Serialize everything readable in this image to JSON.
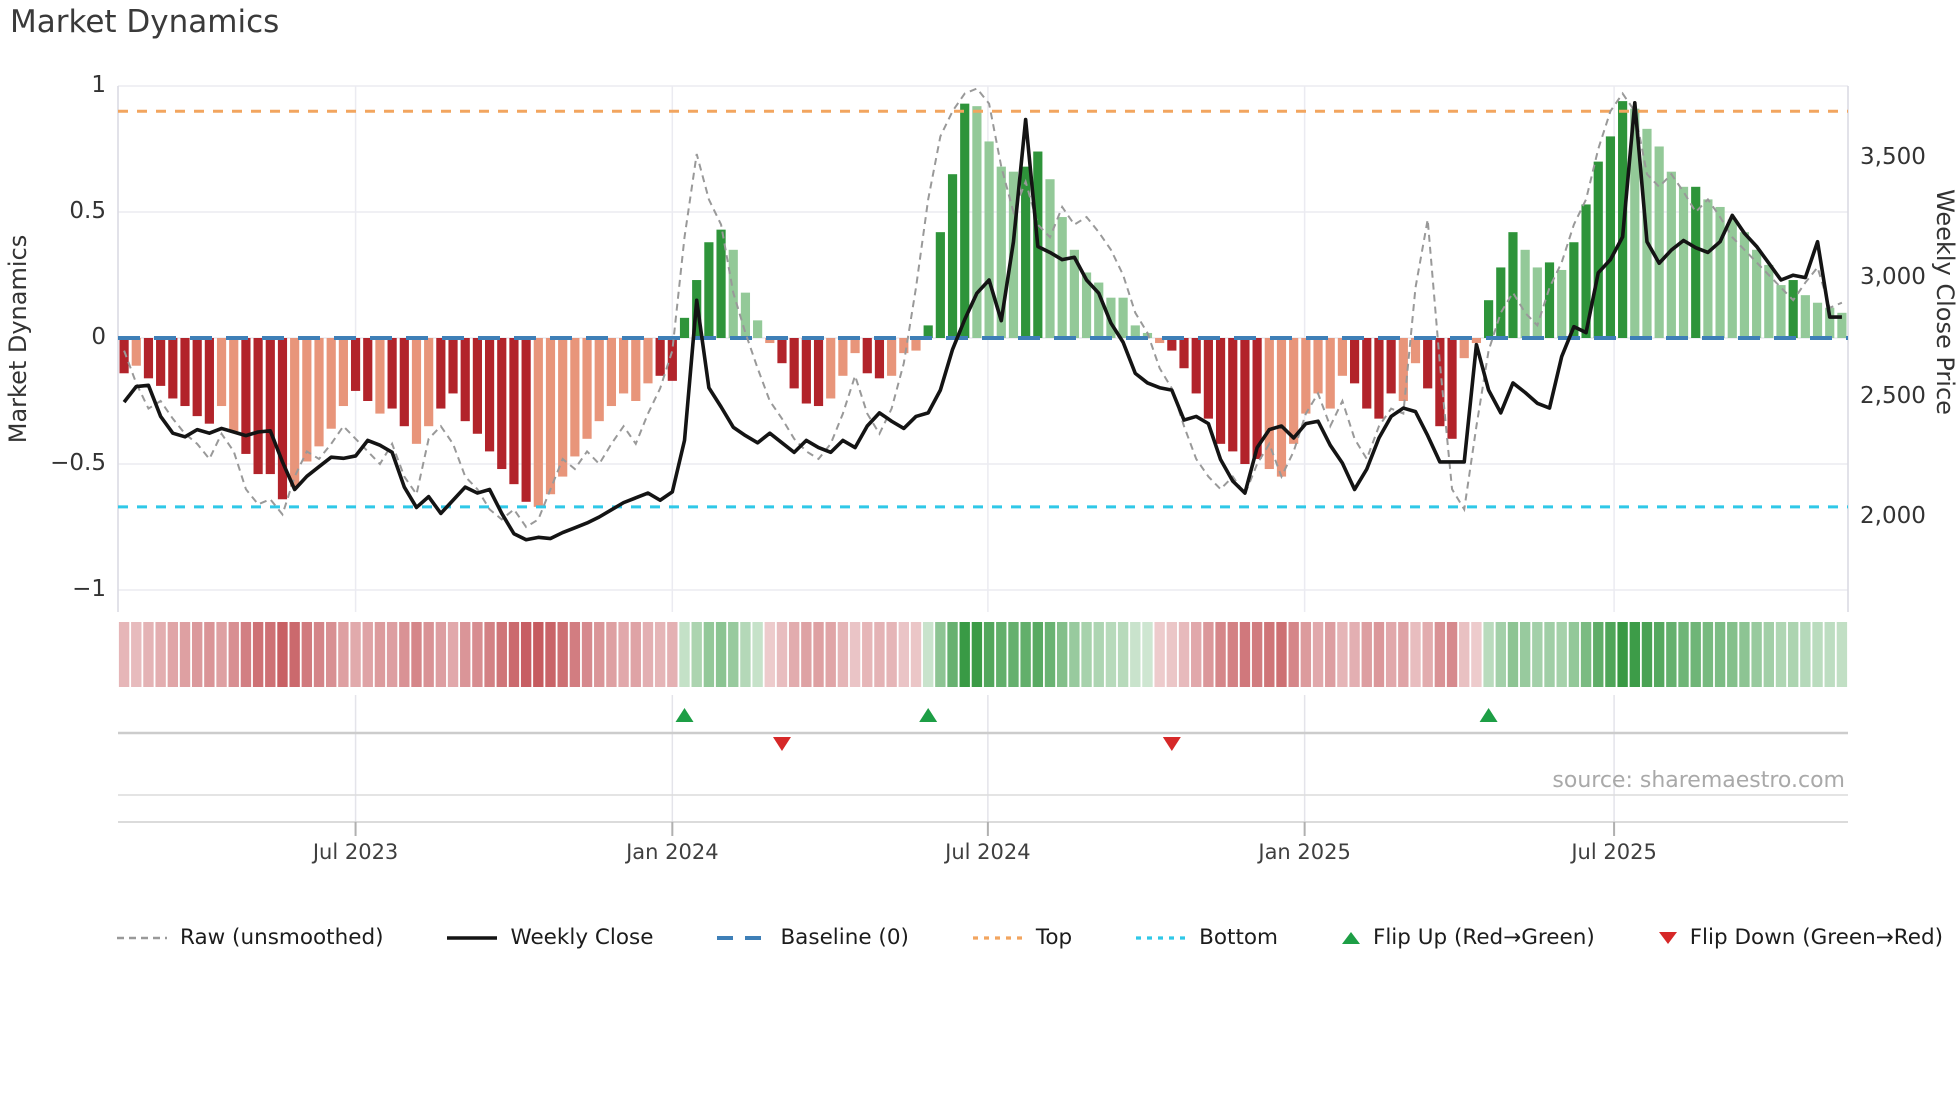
{
  "title": "Market Dynamics",
  "y_left": {
    "label": "Market Dynamics",
    "ticks": [
      {
        "label": "1",
        "value": 1
      },
      {
        "label": "0.5",
        "value": 0.5
      },
      {
        "label": "0",
        "value": 0
      },
      {
        "label": "−0.5",
        "value": -0.5
      },
      {
        "label": "−1",
        "value": -1
      }
    ]
  },
  "y_right": {
    "label": "Weekly Close Price",
    "ticks": [
      {
        "label": "3,500",
        "value": 3500
      },
      {
        "label": "3,000",
        "value": 3000
      },
      {
        "label": "2,500",
        "value": 2500
      },
      {
        "label": "2,000",
        "value": 2000
      }
    ]
  },
  "x_axis": {
    "ticks": [
      {
        "label": "Jul 2023",
        "week": 19.0
      },
      {
        "label": "Jan 2024",
        "week": 45.0
      },
      {
        "label": "Jul 2024",
        "week": 70.9
      },
      {
        "label": "Jan 2025",
        "week": 96.9
      },
      {
        "label": "Jul 2025",
        "week": 122.3
      }
    ]
  },
  "source": "source: sharemaestro.com",
  "colors": {
    "bar_dark_red": "#b2232a",
    "bar_salmon": "#e8957a",
    "bar_dark_green": "#2e943a",
    "bar_light_green": "#93c998",
    "baseline_blue": "#3e7fb7",
    "top_orange": "#f2a55f",
    "bottom_cyan": "#2fc8e8",
    "raw_gray": "#999999",
    "price_black": "#141414",
    "grid": "#ebebf1",
    "spine": "#d9d9e2",
    "flip_up_green": "#1d9e45",
    "flip_down_red": "#d62828",
    "panel_line": "#cccccc"
  },
  "legend": [
    {
      "label": "Raw (unsmoothed)",
      "swatch": "dash-gray"
    },
    {
      "label": "Weekly Close",
      "swatch": "solid-black"
    },
    {
      "label": "Baseline (0)",
      "swatch": "dash-blue"
    },
    {
      "label": "Top",
      "swatch": "dot-orange"
    },
    {
      "label": "Bottom",
      "swatch": "dot-cyan"
    },
    {
      "label": "Flip Up (Red→Green)",
      "swatch": "tri-up-green"
    },
    {
      "label": "Flip Down (Green→Red)",
      "swatch": "tri-down-red"
    }
  ],
  "chart_data": {
    "type": "bar",
    "subtype": "oscillator bars + two lines + heatmap strip + flip markers",
    "n_points": 142,
    "x_unit": "week",
    "ylim_left": [
      -1.05,
      1.05
    ],
    "reference_lines": {
      "baseline": 0,
      "top": 0.9,
      "bottom": -0.67
    },
    "flip_up_weeks": [
      46,
      66,
      112
    ],
    "flip_down_weeks": [
      54,
      86
    ],
    "series": [
      {
        "name": "Market Dynamics oscillator (bars, left axis)",
        "type": "bar",
        "shade_key": "d=dark red/green, l=light salmon/light green",
        "shade": "dlddddddllddddlllllIddlddllddddddddlllllllllldddddd llllddddlllddllldddd llllddlllllllllldddd ddddlllllllddddllddd lldddlldldddddllllldllllllldllll",
        "values": [
          -0.14,
          -0.11,
          -0.16,
          -0.19,
          -0.24,
          -0.27,
          -0.31,
          -0.34,
          -0.27,
          -0.37,
          -0.46,
          -0.54,
          -0.54,
          -0.64,
          -0.59,
          -0.49,
          -0.43,
          -0.36,
          -0.27,
          -0.21,
          -0.25,
          -0.3,
          -0.28,
          -0.35,
          -0.42,
          -0.35,
          -0.28,
          -0.22,
          -0.33,
          -0.38,
          -0.45,
          -0.52,
          -0.58,
          -0.65,
          -0.67,
          -0.62,
          -0.55,
          -0.47,
          -0.4,
          -0.33,
          -0.27,
          -0.22,
          -0.25,
          -0.18,
          -0.15,
          -0.17,
          0.08,
          0.23,
          0.38,
          0.43,
          0.35,
          0.18,
          0.07,
          -0.02,
          -0.1,
          -0.2,
          -0.26,
          -0.27,
          -0.24,
          -0.15,
          -0.06,
          -0.14,
          -0.16,
          -0.15,
          -0.06,
          -0.05,
          0.05,
          0.42,
          0.65,
          0.93,
          0.92,
          0.78,
          0.68,
          0.66,
          0.68,
          0.74,
          0.63,
          0.48,
          0.35,
          0.26,
          0.22,
          0.16,
          0.16,
          0.05,
          0.02,
          -0.02,
          -0.05,
          -0.12,
          -0.22,
          -0.32,
          -0.42,
          -0.45,
          -0.5,
          -0.48,
          -0.52,
          -0.55,
          -0.42,
          -0.3,
          -0.22,
          -0.28,
          -0.15,
          -0.18,
          -0.28,
          -0.32,
          -0.22,
          -0.25,
          -0.1,
          -0.2,
          -0.35,
          -0.4,
          -0.08,
          -0.02,
          0.15,
          0.28,
          0.42,
          0.35,
          0.28,
          0.3,
          0.27,
          0.38,
          0.53,
          0.7,
          0.8,
          0.94,
          0.91,
          0.83,
          0.76,
          0.66,
          0.6,
          0.6,
          0.55,
          0.52,
          0.47,
          0.42,
          0.35,
          0.29,
          0.21,
          0.23,
          0.17,
          0.14,
          0.12,
          0.1
        ]
      },
      {
        "name": "Raw (unsmoothed) (dashed line, left axis)",
        "type": "line",
        "style": "dashed",
        "values": [
          -0.05,
          -0.18,
          -0.28,
          -0.25,
          -0.32,
          -0.38,
          -0.42,
          -0.48,
          -0.38,
          -0.45,
          -0.6,
          -0.66,
          -0.64,
          -0.7,
          -0.55,
          -0.45,
          -0.48,
          -0.42,
          -0.35,
          -0.4,
          -0.45,
          -0.5,
          -0.42,
          -0.55,
          -0.62,
          -0.4,
          -0.35,
          -0.42,
          -0.55,
          -0.6,
          -0.68,
          -0.72,
          -0.68,
          -0.75,
          -0.72,
          -0.6,
          -0.48,
          -0.52,
          -0.45,
          -0.5,
          -0.42,
          -0.35,
          -0.42,
          -0.3,
          -0.2,
          -0.05,
          0.4,
          0.73,
          0.55,
          0.45,
          0.18,
          0.02,
          -0.12,
          -0.25,
          -0.32,
          -0.4,
          -0.45,
          -0.48,
          -0.42,
          -0.3,
          -0.15,
          -0.3,
          -0.38,
          -0.28,
          -0.1,
          0.2,
          0.55,
          0.8,
          0.9,
          0.97,
          0.99,
          0.93,
          0.68,
          0.5,
          0.62,
          0.45,
          0.4,
          0.52,
          0.45,
          0.48,
          0.42,
          0.35,
          0.25,
          0.1,
          0.02,
          -0.12,
          -0.2,
          -0.35,
          -0.48,
          -0.55,
          -0.6,
          -0.55,
          -0.62,
          -0.5,
          -0.42,
          -0.55,
          -0.45,
          -0.3,
          -0.22,
          -0.35,
          -0.25,
          -0.4,
          -0.48,
          -0.35,
          -0.28,
          -0.3,
          0.2,
          0.47,
          -0.1,
          -0.6,
          -0.68,
          -0.35,
          -0.05,
          0.1,
          0.18,
          0.1,
          0.05,
          0.2,
          0.3,
          0.45,
          0.55,
          0.75,
          0.9,
          0.97,
          0.9,
          0.65,
          0.6,
          0.65,
          0.58,
          0.5,
          0.55,
          0.48,
          0.4,
          0.35,
          0.3,
          0.25,
          0.2,
          0.15,
          0.22,
          0.28,
          0.12,
          0.14
        ]
      },
      {
        "name": "Weekly Close (solid line, right axis)",
        "type": "line",
        "style": "solid",
        "values": [
          2480,
          2545,
          2550,
          2420,
          2350,
          2335,
          2365,
          2350,
          2370,
          2355,
          2340,
          2355,
          2360,
          2230,
          2115,
          2170,
          2210,
          2250,
          2245,
          2255,
          2320,
          2300,
          2270,
          2125,
          2040,
          2085,
          2015,
          2070,
          2125,
          2100,
          2115,
          2015,
          1930,
          1905,
          1915,
          1910,
          1935,
          1955,
          1975,
          2000,
          2030,
          2060,
          2080,
          2100,
          2070,
          2105,
          2320,
          2905,
          2540,
          2460,
          2375,
          2340,
          2310,
          2350,
          2310,
          2270,
          2320,
          2290,
          2270,
          2320,
          2290,
          2380,
          2435,
          2400,
          2370,
          2420,
          2435,
          2530,
          2700,
          2825,
          2935,
          2990,
          2820,
          3150,
          3660,
          3130,
          3105,
          3075,
          3085,
          2990,
          2935,
          2810,
          2730,
          2600,
          2560,
          2540,
          2530,
          2405,
          2420,
          2390,
          2240,
          2150,
          2100,
          2290,
          2365,
          2380,
          2330,
          2390,
          2400,
          2300,
          2225,
          2115,
          2200,
          2330,
          2420,
          2455,
          2440,
          2340,
          2230,
          2230,
          2230,
          2720,
          2530,
          2435,
          2560,
          2520,
          2475,
          2455,
          2670,
          2795,
          2770,
          3020,
          3075,
          3170,
          3730,
          3150,
          3060,
          3115,
          3155,
          3125,
          3105,
          3150,
          3260,
          3185,
          3130,
          3060,
          2990,
          3010,
          3000,
          3150,
          2835,
          2835
        ]
      }
    ],
    "heatmap": "strip below plot; cell color = sign/magnitude of oscillator values"
  }
}
